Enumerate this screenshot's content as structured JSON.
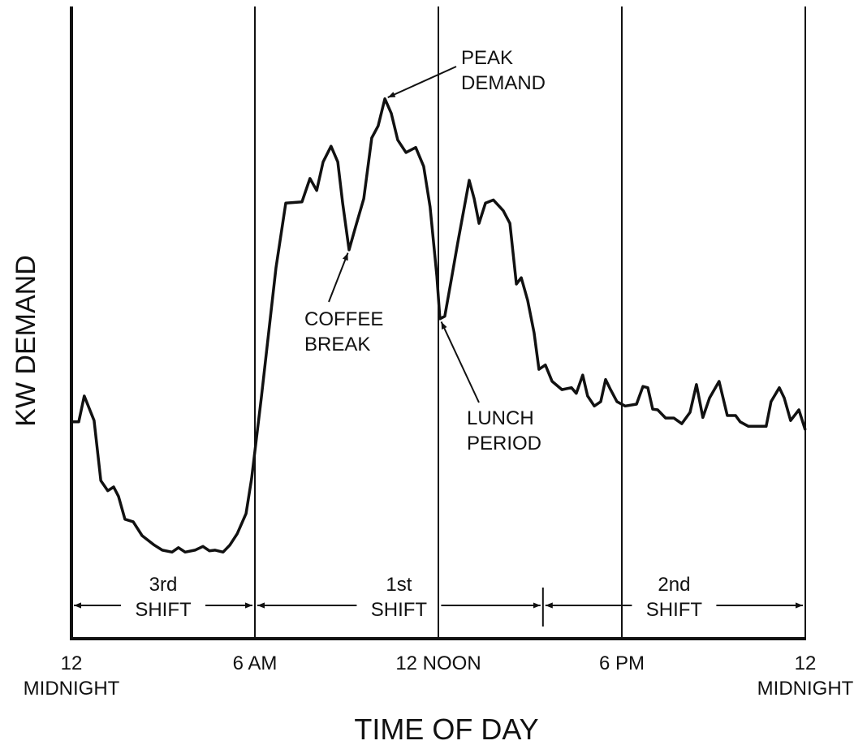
{
  "chart_data": {
    "type": "line",
    "x_label": "TIME OF DAY",
    "y_label": "KW DEMAND",
    "xlim": [
      0,
      24
    ],
    "ylim": [
      0,
      100
    ],
    "xticks": [
      {
        "value": 0,
        "label": "12\nMIDNIGHT"
      },
      {
        "value": 6,
        "label": "6 AM"
      },
      {
        "value": 12,
        "label": "12 NOON"
      },
      {
        "value": 18,
        "label": "6 PM"
      },
      {
        "value": 24,
        "label": "12\nMIDNIGHT"
      }
    ],
    "grid": true,
    "color": "#111111",
    "x": [
      0,
      0.24,
      0.42,
      0.74,
      0.96,
      1.19,
      1.38,
      1.54,
      1.75,
      2.02,
      2.31,
      2.71,
      2.97,
      3.29,
      3.5,
      3.72,
      4.04,
      4.3,
      4.51,
      4.7,
      4.96,
      5.18,
      5.42,
      5.71,
      5.89,
      6.05,
      6.21,
      6.42,
      6.69,
      7.01,
      7.54,
      7.8,
      8.02,
      8.23,
      8.49,
      8.71,
      8.87,
      9.08,
      9.29,
      9.56,
      9.82,
      10.03,
      10.25,
      10.46,
      10.67,
      10.94,
      11.26,
      11.52,
      11.73,
      11.95,
      12.05,
      12.21,
      12.42,
      12.63,
      12.85,
      13.01,
      13.17,
      13.33,
      13.54,
      13.8,
      14.12,
      14.34,
      14.55,
      14.71,
      14.92,
      15.13,
      15.29,
      15.5,
      15.72,
      16.04,
      16.35,
      16.51,
      16.72,
      16.88,
      17.1,
      17.31,
      17.47,
      17.63,
      17.84,
      18.11,
      18.48,
      18.69,
      18.85,
      19.01,
      19.17,
      19.43,
      19.7,
      19.96,
      20.23,
      20.44,
      20.65,
      20.87,
      21.18,
      21.45,
      21.72,
      21.87,
      22.14,
      22.41,
      22.72,
      22.88,
      23.15,
      23.31,
      23.52,
      23.79,
      24
    ],
    "values": [
      34.3,
      34.3,
      38.4,
      34.5,
      25.0,
      23.4,
      24.0,
      22.5,
      18.9,
      18.5,
      16.3,
      14.8,
      14.0,
      13.7,
      14.4,
      13.7,
      14.0,
      14.6,
      13.9,
      14.0,
      13.7,
      14.8,
      16.6,
      19.8,
      25.3,
      31.7,
      38.1,
      47.1,
      58.7,
      68.9,
      69.1,
      72.8,
      70.9,
      75.4,
      77.9,
      75.4,
      68.9,
      61.5,
      65.1,
      69.6,
      79.2,
      81.1,
      85.4,
      83.1,
      78.9,
      76.9,
      77.7,
      74.7,
      68.3,
      57.4,
      50.6,
      51.0,
      56.7,
      62.5,
      68.3,
      72.5,
      69.6,
      65.7,
      68.9,
      69.4,
      67.7,
      65.7,
      56.1,
      57.1,
      53.5,
      48.4,
      42.6,
      43.3,
      40.7,
      39.4,
      39.7,
      38.8,
      41.7,
      38.4,
      36.8,
      37.5,
      41.0,
      39.4,
      37.5,
      36.8,
      37.1,
      39.9,
      39.7,
      36.3,
      36.2,
      34.9,
      34.9,
      34.0,
      35.8,
      40.2,
      35.0,
      38.1,
      40.7,
      35.3,
      35.3,
      34.3,
      33.6,
      33.6,
      33.6,
      37.5,
      39.7,
      38.1,
      34.5,
      36.2,
      33.0
    ],
    "annotations": [
      {
        "text": "PEAK\nDEMAND",
        "x": 10.25,
        "y": 85.4
      },
      {
        "text": "COFFEE\nBREAK",
        "x": 9.08,
        "y": 61.5
      },
      {
        "text": "LUNCH\nPERIOD",
        "x": 12.05,
        "y": 50.6
      }
    ],
    "shifts": [
      {
        "label": "3rd\nSHIFT",
        "start": 0,
        "end": 6
      },
      {
        "label": "1st\nSHIFT",
        "start": 6,
        "end": 15.42
      },
      {
        "label": "2nd\nSHIFT",
        "start": 15.42,
        "end": 24
      }
    ]
  }
}
